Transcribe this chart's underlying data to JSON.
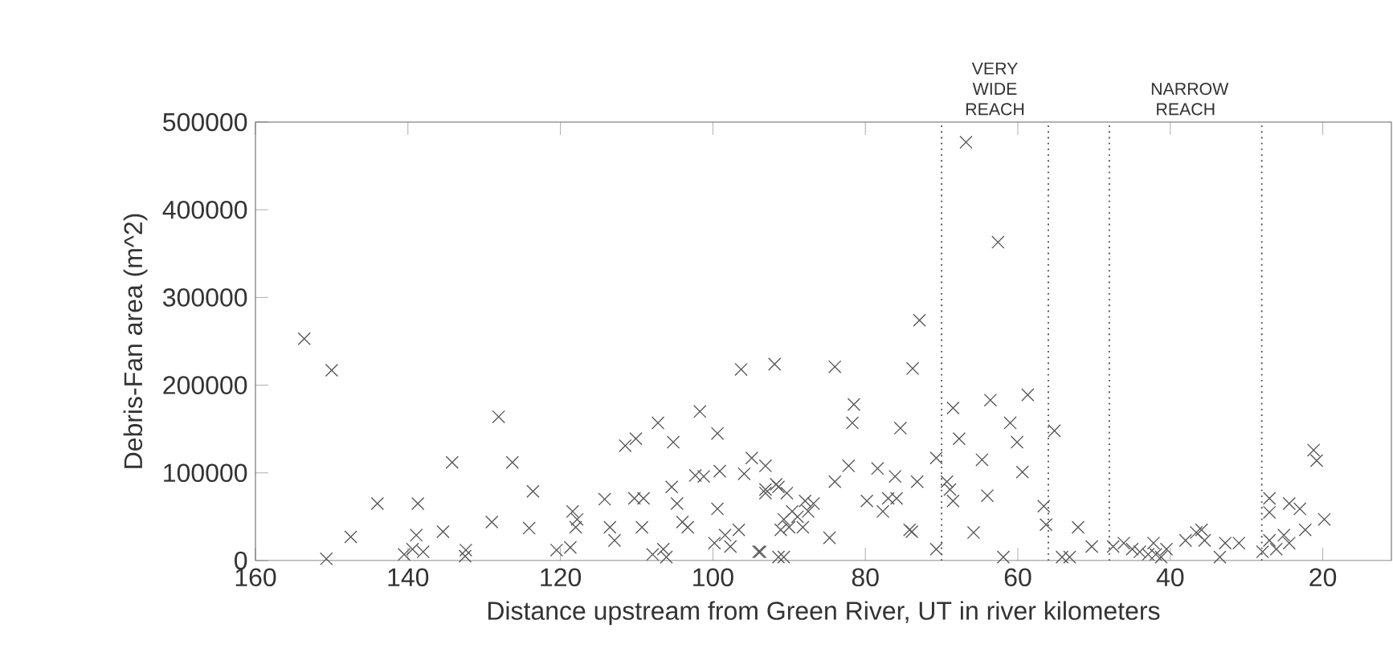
{
  "chart_data": {
    "type": "scatter",
    "xlabel": "Distance upstream from Green River, UT in river kilometers",
    "ylabel": "Debris-Fan area (m^2)",
    "xlim": [
      160,
      11
    ],
    "ylim": [
      0,
      500000
    ],
    "xticks": [
      160,
      140,
      120,
      100,
      80,
      60,
      40,
      20
    ],
    "yticks": [
      0,
      100000,
      200000,
      300000,
      400000,
      500000
    ],
    "marker": "cross",
    "ref_lines": [
      {
        "axis": "x",
        "value": 70,
        "line_style": "dotted"
      },
      {
        "axis": "x",
        "value": 56,
        "line_style": "dotted"
      },
      {
        "axis": "x",
        "value": 48,
        "line_style": "dotted"
      },
      {
        "axis": "x",
        "value": 28,
        "line_style": "dotted"
      }
    ],
    "annotations": [
      "VERY WIDE REACH",
      "NARROW REACH"
    ],
    "series": [
      {
        "color": "#555555",
        "x": [
          153.6,
          150,
          150.7,
          147.5,
          144,
          140.5,
          138.7,
          138.9,
          139.4,
          138,
          135.4,
          134.2,
          132.4,
          132.5,
          129,
          128.1,
          126.3,
          124.1,
          123.6,
          120.5,
          118.4,
          118,
          118.7,
          117.8,
          114.2,
          113.5,
          112.9,
          111.5,
          110.1,
          110.3,
          109.1,
          109.3,
          107.9,
          107.2,
          106.5,
          106.1,
          105.4,
          105.2,
          104.7,
          104,
          103.3,
          101.7,
          102.3,
          101.2,
          99.4,
          99.4,
          99.1,
          99.8,
          98.4,
          97.7,
          96.3,
          95.9,
          94.9,
          96.6,
          93.8,
          93.1,
          91.9,
          91.4,
          91.1,
          90.7,
          84,
          72.9,
          73.8,
          81.5,
          81.7,
          75.4,
          66.8,
          62.6,
          68.5,
          63.6,
          58.7,
          61,
          60.1,
          55.2,
          67.7,
          64.7,
          59.4,
          70.7,
          82.2,
          84,
          78.4,
          76.1,
          77,
          73.2,
          79.8,
          77.7,
          75.9,
          74.2,
          73.9,
          84.7,
          69.3,
          68.5,
          68.9,
          64,
          65.8,
          61.9,
          70.7,
          56.6,
          56.3,
          91.7,
          93.1,
          90.3,
          87.9,
          89.6,
          90.7,
          88.9,
          87.5,
          90,
          88.2,
          86.8,
          91.4,
          94,
          93.1,
          54.2,
          53.2,
          52.1,
          50.3,
          47.5,
          46.1,
          45,
          44,
          42.9,
          41.9,
          42.2,
          41.2,
          40.5,
          38,
          36.6,
          35.9,
          35.5,
          33.5,
          32.8,
          31,
          27,
          27,
          27,
          26.1,
          25.1,
          24.4,
          23,
          22.3,
          21.2,
          20.8,
          19.8,
          24.4,
          27.9
        ],
        "values": [
          253000,
          217000,
          2000,
          27000,
          65000,
          7000,
          65000,
          29000,
          13000,
          10000,
          33000,
          112000,
          12000,
          5000,
          44000,
          164000,
          112000,
          37000,
          79000,
          12000,
          56000,
          38000,
          15000,
          47000,
          70000,
          38000,
          23000,
          131000,
          139000,
          71000,
          71000,
          38000,
          7000,
          157000,
          13000,
          4000,
          84000,
          135000,
          65000,
          44000,
          38000,
          170000,
          97000,
          96000,
          145000,
          59000,
          102000,
          20000,
          29000,
          16000,
          218000,
          99000,
          117000,
          35000,
          10000,
          81000,
          224000,
          84000,
          35000,
          4000,
          221000,
          274000,
          219000,
          178000,
          157000,
          151000,
          477000,
          363000,
          174000,
          183000,
          189000,
          157000,
          135000,
          148000,
          139000,
          115000,
          101000,
          117000,
          108000,
          90000,
          105000,
          96000,
          71000,
          90000,
          68000,
          56000,
          71000,
          35000,
          33000,
          26000,
          90000,
          68000,
          81000,
          74000,
          32000,
          4000,
          13000,
          62000,
          41000,
          87000,
          77000,
          77000,
          68000,
          56000,
          47000,
          50000,
          56000,
          38000,
          38000,
          65000,
          4000,
          10000,
          108000,
          4000,
          4000,
          38000,
          16000,
          16000,
          20000,
          13000,
          10000,
          7000,
          7000,
          20000,
          4000,
          13000,
          23000,
          32000,
          35000,
          23000,
          4000,
          20000,
          20000,
          71000,
          55000,
          23000,
          13000,
          29000,
          65000,
          59000,
          35000,
          126000,
          114000,
          47000,
          20000,
          10000
        ]
      }
    ]
  }
}
